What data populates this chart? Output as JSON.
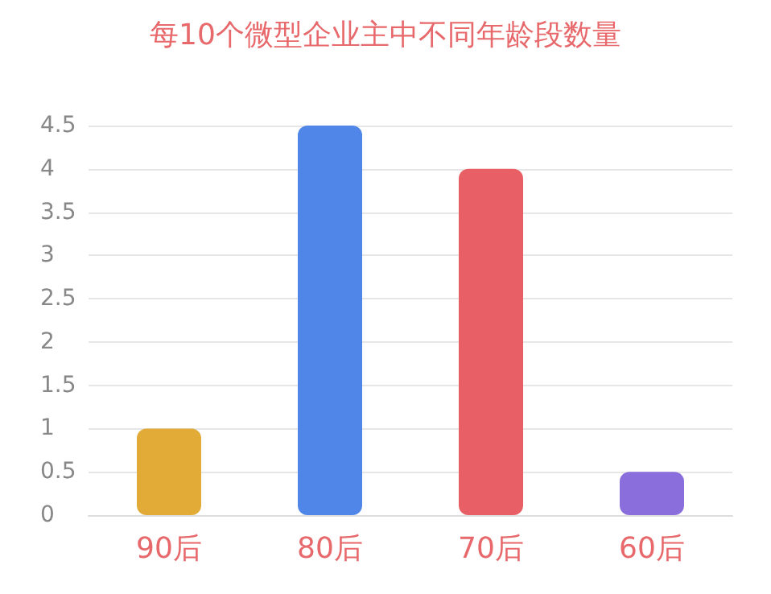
{
  "chart_data": {
    "type": "bar",
    "title": "每10个微型企业主中不同年龄段数量",
    "categories": [
      "90后",
      "80后",
      "70后",
      "60后"
    ],
    "values": [
      1,
      4.5,
      4,
      0.5
    ],
    "colors": [
      "#e2ab38",
      "#4f86e8",
      "#e85f66",
      "#8a6edb"
    ],
    "ylim": [
      0,
      4.5
    ],
    "yticks": [
      0,
      0.5,
      1,
      1.5,
      2,
      2.5,
      3,
      3.5,
      4,
      4.5
    ],
    "grid": "y"
  }
}
